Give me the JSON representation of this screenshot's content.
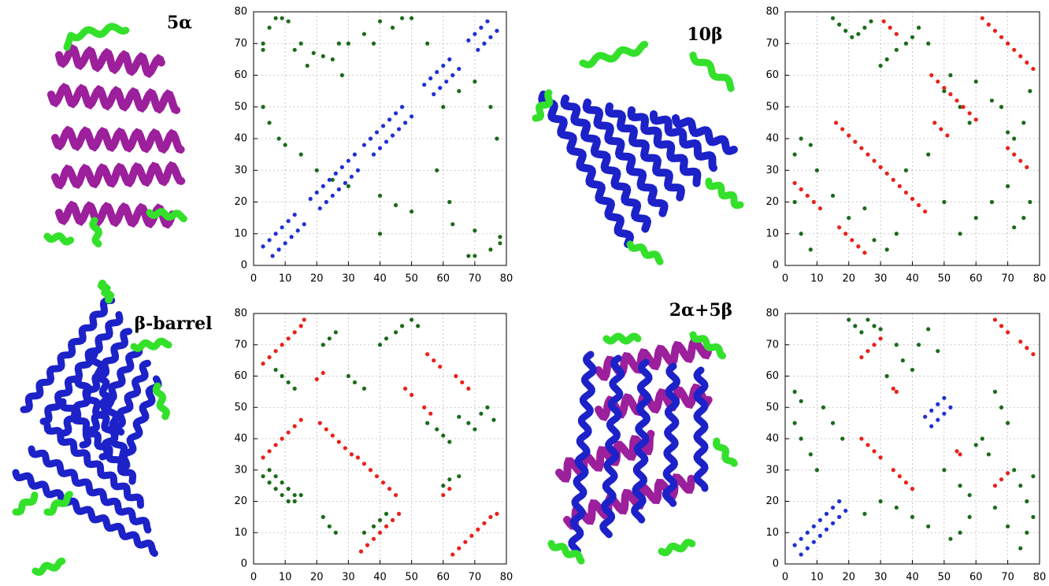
{
  "chart_data": [
    {
      "type": "scatter",
      "title": "5α",
      "xlim": [
        0,
        80
      ],
      "ylim": [
        0,
        80
      ],
      "xticks": [
        0,
        10,
        20,
        30,
        40,
        50,
        60,
        70,
        80
      ],
      "yticks": [
        0,
        10,
        20,
        30,
        40,
        50,
        60,
        70,
        80
      ],
      "grid": true,
      "series": [
        {
          "color": "#1a6b1a",
          "x": [
            3,
            3,
            5,
            7,
            9,
            11,
            13,
            15,
            17,
            19,
            22,
            25,
            27,
            30,
            35,
            38,
            40,
            44,
            47,
            50,
            55,
            60,
            65,
            70,
            75,
            77,
            70,
            68,
            75,
            78,
            78,
            70,
            63,
            50,
            45,
            40,
            30,
            25,
            20,
            15,
            10,
            8,
            5,
            3,
            28,
            58,
            62,
            40
          ],
          "values": [
            70,
            68,
            75,
            78,
            78,
            77,
            68,
            70,
            63,
            67,
            66,
            65,
            70,
            70,
            73,
            70,
            77,
            75,
            78,
            78,
            70,
            50,
            55,
            58,
            50,
            40,
            3,
            3,
            5,
            7,
            9,
            11,
            13,
            17,
            19,
            22,
            25,
            27,
            30,
            35,
            38,
            40,
            45,
            50,
            60,
            30,
            20,
            10
          ]
        },
        {
          "color": "#1f2fd6",
          "x": [
            3,
            5,
            7,
            9,
            11,
            13,
            18,
            20,
            22,
            24,
            26,
            28,
            30,
            32,
            35,
            37,
            39,
            41,
            43,
            45,
            47,
            54,
            56,
            58,
            60,
            62,
            68,
            70,
            72,
            74,
            6,
            8,
            10,
            12,
            14,
            16,
            21,
            23,
            25,
            27,
            29,
            31,
            33,
            38,
            40,
            42,
            44,
            46,
            48,
            50,
            57,
            59,
            61,
            63,
            65,
            71,
            73,
            75,
            77
          ],
          "values": [
            6,
            8,
            10,
            12,
            14,
            16,
            21,
            23,
            25,
            27,
            29,
            31,
            33,
            35,
            38,
            40,
            42,
            44,
            46,
            48,
            50,
            57,
            59,
            61,
            63,
            65,
            71,
            73,
            75,
            77,
            3,
            5,
            7,
            9,
            11,
            13,
            18,
            20,
            22,
            24,
            26,
            28,
            30,
            35,
            37,
            39,
            41,
            43,
            45,
            47,
            54,
            56,
            58,
            60,
            62,
            68,
            70,
            72,
            74
          ]
        }
      ]
    },
    {
      "type": "scatter",
      "title": "10β",
      "xlim": [
        0,
        80
      ],
      "ylim": [
        0,
        80
      ],
      "xticks": [
        0,
        10,
        20,
        30,
        40,
        50,
        60,
        70,
        80
      ],
      "yticks": [
        0,
        10,
        20,
        30,
        40,
        50,
        60,
        70,
        80
      ],
      "grid": true,
      "series": [
        {
          "color": "#1a6b1a",
          "x": [
            15,
            17,
            19,
            21,
            23,
            25,
            27,
            30,
            32,
            35,
            38,
            40,
            42,
            45,
            50,
            52,
            55,
            58,
            60,
            65,
            68,
            70,
            72,
            75,
            77,
            77,
            75,
            72,
            70,
            65,
            60,
            55,
            50,
            45,
            38,
            35,
            32,
            28,
            25,
            20,
            15,
            10,
            8,
            5,
            3,
            3,
            5,
            8
          ],
          "values": [
            78,
            76,
            74,
            72,
            73,
            75,
            77,
            63,
            65,
            68,
            70,
            72,
            75,
            70,
            55,
            60,
            50,
            45,
            58,
            52,
            50,
            42,
            40,
            45,
            55,
            20,
            15,
            12,
            25,
            20,
            15,
            10,
            20,
            35,
            30,
            10,
            5,
            8,
            18,
            15,
            22,
            30,
            38,
            40,
            35,
            20,
            10,
            5
          ]
        },
        {
          "color": "#e8221a",
          "x": [
            3,
            5,
            7,
            9,
            11,
            17,
            19,
            21,
            23,
            25,
            16,
            18,
            20,
            22,
            24,
            26,
            28,
            30,
            32,
            34,
            36,
            38,
            40,
            42,
            44,
            31,
            33,
            35,
            46,
            48,
            50,
            52,
            54,
            56,
            58,
            60,
            47,
            49,
            51,
            62,
            64,
            66,
            68,
            70,
            72,
            74,
            76,
            78,
            70,
            72,
            74,
            76
          ],
          "values": [
            26,
            24,
            22,
            20,
            18,
            12,
            10,
            8,
            6,
            4,
            45,
            43,
            41,
            39,
            37,
            35,
            33,
            31,
            29,
            27,
            25,
            23,
            21,
            19,
            17,
            77,
            75,
            73,
            60,
            58,
            56,
            54,
            52,
            50,
            48,
            46,
            45,
            43,
            41,
            78,
            76,
            74,
            72,
            70,
            68,
            66,
            64,
            62,
            37,
            35,
            33,
            31
          ]
        }
      ]
    },
    {
      "type": "scatter",
      "title": "β-barrel",
      "xlim": [
        0,
        80
      ],
      "ylim": [
        0,
        80
      ],
      "xticks": [
        0,
        10,
        20,
        30,
        40,
        50,
        60,
        70,
        80
      ],
      "yticks": [
        0,
        10,
        20,
        30,
        40,
        50,
        60,
        70,
        80
      ],
      "grid": true,
      "series": [
        {
          "color": "#1a6b1a",
          "x": [
            7,
            9,
            11,
            13,
            5,
            7,
            9,
            11,
            13,
            15,
            3,
            5,
            7,
            9,
            11,
            13,
            22,
            24,
            26,
            22,
            24,
            26,
            30,
            32,
            35,
            40,
            42,
            45,
            47,
            50,
            52,
            35,
            38,
            40,
            42,
            55,
            58,
            60,
            62,
            65,
            68,
            70,
            72,
            74,
            76,
            60,
            62,
            65
          ],
          "values": [
            62,
            60,
            58,
            56,
            30,
            28,
            26,
            24,
            22,
            22,
            28,
            26,
            24,
            22,
            20,
            20,
            15,
            12,
            10,
            70,
            72,
            74,
            60,
            58,
            56,
            70,
            72,
            74,
            76,
            78,
            76,
            10,
            12,
            14,
            16,
            45,
            43,
            41,
            39,
            47,
            45,
            43,
            48,
            50,
            46,
            25,
            27,
            28
          ]
        },
        {
          "color": "#e8221a",
          "x": [
            3,
            5,
            7,
            9,
            11,
            13,
            15,
            16,
            3,
            5,
            7,
            9,
            11,
            13,
            15,
            34,
            36,
            38,
            40,
            42,
            44,
            46,
            63,
            65,
            67,
            69,
            71,
            73,
            75,
            77,
            21,
            23,
            25,
            27,
            29,
            31,
            33,
            35,
            37,
            39,
            41,
            43,
            45,
            20,
            22,
            55,
            57,
            59,
            48,
            50,
            54,
            56,
            60,
            62,
            64,
            66,
            68
          ],
          "values": [
            64,
            66,
            68,
            70,
            72,
            74,
            76,
            78,
            34,
            36,
            38,
            40,
            42,
            44,
            46,
            4,
            6,
            8,
            10,
            12,
            14,
            16,
            3,
            5,
            7,
            9,
            11,
            13,
            15,
            16,
            45,
            43,
            41,
            39,
            37,
            35,
            34,
            32,
            30,
            28,
            26,
            24,
            22,
            59,
            61,
            67,
            65,
            63,
            56,
            54,
            50,
            48,
            22,
            24,
            60,
            58,
            56
          ]
        }
      ]
    },
    {
      "type": "scatter",
      "title": "2α+5β",
      "xlim": [
        0,
        80
      ],
      "ylim": [
        0,
        80
      ],
      "xticks": [
        0,
        10,
        20,
        30,
        40,
        50,
        60,
        70,
        80
      ],
      "yticks": [
        0,
        10,
        20,
        30,
        40,
        50,
        60,
        70,
        80
      ],
      "grid": true,
      "series": [
        {
          "color": "#1a6b1a",
          "x": [
            3,
            5,
            3,
            5,
            8,
            10,
            12,
            15,
            18,
            20,
            22,
            24,
            26,
            28,
            30,
            32,
            35,
            37,
            40,
            42,
            45,
            48,
            50,
            55,
            58,
            60,
            62,
            64,
            66,
            68,
            70,
            72,
            74,
            76,
            78,
            78,
            76,
            74,
            70,
            66,
            58,
            55,
            52,
            45,
            40,
            35,
            30,
            25
          ],
          "values": [
            55,
            52,
            45,
            40,
            35,
            30,
            50,
            45,
            40,
            78,
            76,
            74,
            78,
            76,
            75,
            60,
            70,
            65,
            62,
            70,
            75,
            68,
            30,
            25,
            22,
            38,
            40,
            35,
            55,
            50,
            45,
            30,
            25,
            20,
            15,
            28,
            10,
            5,
            12,
            18,
            15,
            10,
            8,
            12,
            15,
            18,
            20,
            16
          ]
        },
        {
          "color": "#1f2fd6",
          "x": [
            3,
            5,
            7,
            9,
            11,
            13,
            15,
            17,
            5,
            7,
            9,
            11,
            13,
            15,
            17,
            19,
            44,
            46,
            48,
            50,
            46,
            48,
            50,
            52
          ],
          "values": [
            6,
            8,
            10,
            12,
            14,
            16,
            18,
            20,
            3,
            5,
            7,
            9,
            11,
            13,
            15,
            17,
            47,
            49,
            51,
            53,
            44,
            46,
            48,
            50
          ]
        },
        {
          "color": "#e8221a",
          "x": [
            24,
            26,
            28,
            30,
            24,
            26,
            28,
            30,
            34,
            36,
            38,
            40,
            34,
            35,
            54,
            55,
            66,
            68,
            70,
            66,
            68,
            70,
            74,
            76,
            78
          ],
          "values": [
            66,
            68,
            70,
            72,
            40,
            38,
            36,
            34,
            30,
            28,
            26,
            24,
            56,
            55,
            36,
            35,
            25,
            27,
            29,
            78,
            76,
            74,
            71,
            69,
            67
          ]
        }
      ]
    }
  ]
}
